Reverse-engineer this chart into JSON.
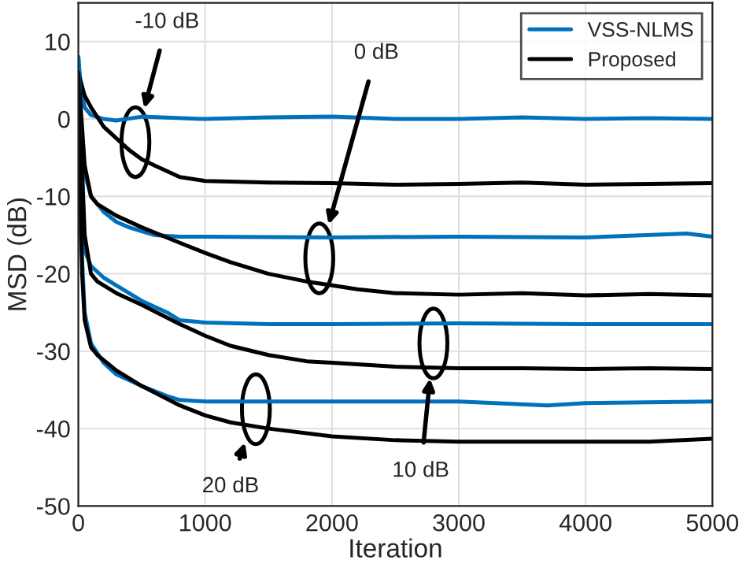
{
  "chart_data": {
    "type": "line",
    "xlabel": "Iteration",
    "ylabel": "MSD (dB)",
    "xlim": [
      0,
      5000
    ],
    "xticks": [
      0,
      1000,
      2000,
      3000,
      4000,
      5000
    ],
    "ylim": [
      -50,
      15
    ],
    "yticks": [
      -50,
      -40,
      -30,
      -20,
      -10,
      0,
      10
    ],
    "grid": true,
    "legend": "top right",
    "series": [
      {
        "name": "VSS-NLMS",
        "color": "#0072bd",
        "x": [
          0,
          20,
          50,
          100,
          200,
          300,
          500,
          1000,
          1500,
          2000,
          2500,
          3000,
          3500,
          4000,
          4500,
          5000
        ],
        "values": [
          8,
          4,
          1.5,
          0.5,
          0,
          -0.2,
          0.3,
          0,
          0.2,
          0.3,
          0,
          0,
          0.2,
          0,
          0.1,
          0
        ]
      },
      {
        "name": "Proposed",
        "color": "#000000",
        "x": [
          0,
          50,
          100,
          200,
          300,
          400,
          500,
          600,
          800,
          1000,
          1500,
          2000,
          2500,
          3000,
          3500,
          4000,
          4500,
          5000
        ],
        "values": [
          6,
          3,
          1.5,
          -1,
          -2.5,
          -4,
          -5.2,
          -6,
          -7.5,
          -8,
          -8.2,
          -8.3,
          -8.5,
          -8.4,
          -8.2,
          -8.5,
          -8.4,
          -8.3
        ]
      },
      {
        "color": "#0072bd",
        "x": [
          0,
          20,
          50,
          100,
          200,
          300,
          400,
          500,
          600,
          800,
          1000,
          2000,
          3000,
          4000,
          4800,
          5000
        ],
        "values": [
          8,
          0,
          -7,
          -10,
          -12,
          -13.3,
          -14,
          -14.5,
          -15,
          -15.2,
          -15.2,
          -15.3,
          -15.2,
          -15.3,
          -14.8,
          -15.2
        ]
      },
      {
        "color": "#000000",
        "x": [
          0,
          50,
          100,
          150,
          300,
          500,
          800,
          1000,
          1200,
          1500,
          1800,
          2000,
          2200,
          2500,
          3000,
          3500,
          4000,
          4500,
          5000
        ],
        "values": [
          6,
          -6,
          -10,
          -11,
          -12.5,
          -14,
          -16,
          -17.3,
          -18.5,
          -20,
          -21,
          -21.5,
          -22,
          -22.5,
          -22.7,
          -22.5,
          -22.8,
          -22.6,
          -22.8
        ]
      },
      {
        "color": "#0072bd",
        "x": [
          0,
          20,
          50,
          100,
          200,
          300,
          500,
          700,
          800,
          1000,
          1500,
          2000,
          3000,
          4000,
          5000
        ],
        "values": [
          8,
          -10,
          -17,
          -19,
          -20.5,
          -21.5,
          -23.5,
          -25,
          -26,
          -26.3,
          -26.5,
          -26.5,
          -26.4,
          -26.5,
          -26.5
        ]
      },
      {
        "color": "#000000",
        "x": [
          0,
          50,
          100,
          150,
          300,
          500,
          800,
          1000,
          1200,
          1500,
          1800,
          2000,
          2500,
          3000,
          3500,
          4000,
          4500,
          5000
        ],
        "values": [
          6,
          -15,
          -20,
          -21,
          -22.5,
          -24,
          -26.5,
          -28,
          -29.3,
          -30.5,
          -31.3,
          -31.5,
          -32,
          -32.2,
          -32.2,
          -32.3,
          -32.2,
          -32.3
        ]
      },
      {
        "color": "#0072bd",
        "x": [
          0,
          20,
          50,
          100,
          200,
          300,
          500,
          700,
          800,
          1000,
          2000,
          3000,
          3700,
          4000,
          5000
        ],
        "values": [
          8,
          -15,
          -25,
          -29,
          -31.5,
          -33,
          -34.5,
          -35.8,
          -36.3,
          -36.5,
          -36.5,
          -36.5,
          -37,
          -36.7,
          -36.5
        ]
      },
      {
        "color": "#000000",
        "x": [
          0,
          30,
          50,
          100,
          150,
          300,
          500,
          800,
          1000,
          1200,
          1500,
          2000,
          2500,
          3000,
          3500,
          4000,
          4500,
          5000
        ],
        "values": [
          6,
          -20,
          -26,
          -29.5,
          -30.5,
          -32.5,
          -34.5,
          -37,
          -38.3,
          -39.2,
          -40,
          -41,
          -41.5,
          -41.7,
          -41.7,
          -41.7,
          -41.7,
          -41.3
        ]
      }
    ],
    "annotations": [
      "-10 dB",
      "0 dB",
      "10 dB",
      "20 dB"
    ]
  }
}
